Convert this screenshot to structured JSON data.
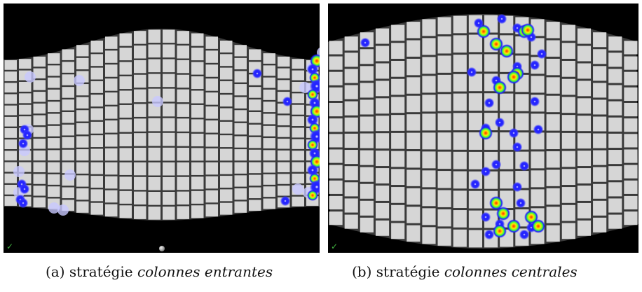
{
  "figure": {
    "panels": [
      {
        "id": "a",
        "caption_prefix": "(a) stratégie",
        "caption_italic": "colonnes entrantes",
        "marker_glyph": "✓"
      },
      {
        "id": "b",
        "caption_prefix": "(b) stratégie",
        "caption_italic": "colonnes centrales",
        "marker_glyph": "✓"
      }
    ]
  },
  "colors": {
    "background": "#000000",
    "tile": "#d6d6d6",
    "grout": "#3a3a3a",
    "gaze_outer": "#1e1eff",
    "gaze_hot": "#ffe800",
    "gaze_peak": "#ff2a00",
    "faded_point": "#c8c8ff"
  }
}
